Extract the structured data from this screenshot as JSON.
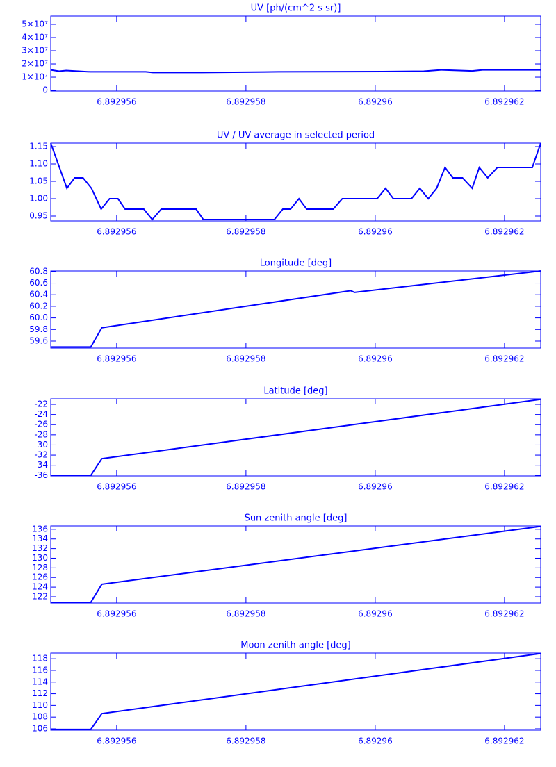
{
  "chart_data": [
    {
      "type": "line",
      "title": "UV [ph/(cm^2 s sr)]",
      "color": "#0000ff",
      "x": [
        6.89295498,
        6.89295511,
        6.89295522,
        6.89295559,
        6.89295645,
        6.89295656,
        6.89295731,
        6.8929585,
        6.89296011,
        6.89296075,
        6.89296102,
        6.8929615,
        6.89296166,
        6.89296256
      ],
      "values": [
        15500000,
        14500000,
        15000000,
        14000000,
        14000000,
        13500000,
        13500000,
        14000000,
        14200000,
        14500000,
        15500000,
        14700000,
        15500000,
        15500000
      ],
      "xlim": [
        6.89295498,
        6.89296256
      ],
      "xticks": [
        6.892956,
        6.892958,
        6.89296,
        6.892962
      ],
      "ylim": [
        -500000,
        56300000
      ],
      "yticks": [
        {
          "value": 0,
          "label": "0"
        },
        {
          "value": 10000000,
          "label": "1×10⁷"
        },
        {
          "value": 20000000,
          "label": "2×10⁷"
        },
        {
          "value": 30000000,
          "label": "3×10⁷"
        },
        {
          "value": 40000000,
          "label": "4×10⁷"
        },
        {
          "value": 50000000,
          "label": "5×10⁷"
        }
      ]
    },
    {
      "type": "line",
      "title": "UV / UV average in selected period",
      "color": "#0000ff",
      "x": [
        6.89295498,
        6.89295523,
        6.89295535,
        6.89295548,
        6.89295561,
        6.89295576,
        6.89295589,
        6.89295602,
        6.89295613,
        6.89295642,
        6.89295655,
        6.89295669,
        6.89295723,
        6.89295734,
        6.89295844,
        6.89295857,
        6.89295869,
        6.89295882,
        6.89295894,
        6.89295935,
        6.89295949,
        6.89296003,
        6.89296016,
        6.89296028,
        6.89296056,
        6.89296069,
        6.89296082,
        6.89296095,
        6.89296108,
        6.8929612,
        6.89296135,
        6.8929615,
        6.89296161,
        6.89296174,
        6.89296189,
        6.89296243,
        6.89296256
      ],
      "values": [
        1.16,
        1.03,
        1.06,
        1.06,
        1.03,
        0.97,
        1.0,
        1.0,
        0.97,
        0.97,
        0.94,
        0.97,
        0.97,
        0.94,
        0.94,
        0.97,
        0.97,
        1.0,
        0.97,
        0.97,
        1.0,
        1.0,
        1.03,
        1.0,
        1.0,
        1.03,
        1.0,
        1.03,
        1.09,
        1.06,
        1.06,
        1.03,
        1.09,
        1.06,
        1.09,
        1.09,
        1.16
      ],
      "xlim": [
        6.89295498,
        6.89296256
      ],
      "xticks": [
        6.892956,
        6.892958,
        6.89296,
        6.892962
      ],
      "ylim": [
        0.936,
        1.16
      ],
      "yticks": [
        0.95,
        {
          "value": 1,
          "label": "1.00"
        },
        1.05,
        {
          "value": 1.1,
          "label": "1.10"
        },
        1.15
      ]
    },
    {
      "type": "line",
      "title": "Longitude [deg]",
      "color": "#0000ff",
      "x": [
        6.89295498,
        6.8929556,
        6.89295577,
        6.89295962,
        6.89295968,
        6.89296256
      ],
      "values": [
        59.5,
        59.5,
        59.83,
        60.47,
        60.44,
        60.81
      ],
      "xlim": [
        6.89295498,
        6.89296256
      ],
      "xticks": [
        6.892956,
        6.892958,
        6.89296,
        6.892962
      ],
      "ylim": [
        59.48,
        60.81
      ],
      "yticks": [
        59.6,
        59.8,
        {
          "value": 60,
          "label": "60.0"
        },
        60.2,
        60.4,
        60.6,
        60.8
      ]
    },
    {
      "type": "line",
      "title": "Latitude [deg]",
      "color": "#0000ff",
      "x": [
        6.89295498,
        6.8929556,
        6.89295577,
        6.89296256
      ],
      "values": [
        -36,
        -36,
        -32.7,
        -21
      ],
      "xlim": [
        6.89295498,
        6.89296256
      ],
      "xticks": [
        6.892956,
        6.892958,
        6.89296,
        6.892962
      ],
      "ylim": [
        -36.1,
        -20.9
      ],
      "yticks": [
        -36,
        -34,
        -32,
        -30,
        -28,
        -26,
        -24,
        -22
      ]
    },
    {
      "type": "line",
      "title": "Sun zenith angle [deg]",
      "color": "#0000ff",
      "x": [
        6.89295498,
        6.8929556,
        6.89295577,
        6.89296256
      ],
      "values": [
        120.85,
        120.85,
        124.6,
        136.6
      ],
      "xlim": [
        6.89295498,
        6.89296256
      ],
      "xticks": [
        6.892956,
        6.892958,
        6.89296,
        6.892962
      ],
      "ylim": [
        120.7,
        136.7
      ],
      "yticks": [
        122,
        124,
        126,
        128,
        130,
        132,
        134,
        136
      ]
    },
    {
      "type": "line",
      "title": "Moon zenith angle [deg]",
      "color": "#0000ff",
      "x": [
        6.89295498,
        6.8929556,
        6.89295577,
        6.89296256
      ],
      "values": [
        105.9,
        105.9,
        108.6,
        118.9
      ],
      "xlim": [
        6.89295498,
        6.89296256
      ],
      "xticks": [
        6.892956,
        6.892958,
        6.89296,
        6.892962
      ],
      "ylim": [
        105.76,
        118.97
      ],
      "yticks": [
        106,
        108,
        110,
        112,
        114,
        116,
        118
      ]
    }
  ]
}
